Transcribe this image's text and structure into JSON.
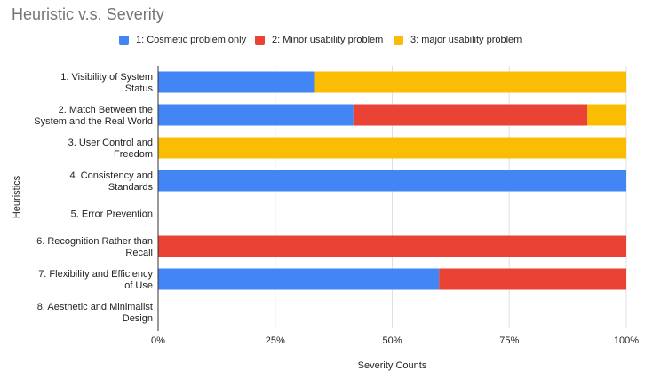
{
  "chart_data": {
    "type": "bar",
    "orientation": "horizontal",
    "stacked": "percent",
    "title": "Heuristic v.s. Severity",
    "xlabel": "Severity Counts",
    "ylabel": "Heuristics",
    "xlim": [
      0,
      100
    ],
    "x_ticks": [
      "0%",
      "25%",
      "50%",
      "75%",
      "100%"
    ],
    "x_tick_values": [
      0,
      25,
      50,
      75,
      100
    ],
    "grid": true,
    "legend_position": "top",
    "categories": [
      [
        "1. Visibility of System",
        "Status"
      ],
      [
        "2. Match Between the",
        "System and the Real World"
      ],
      [
        "3. User Control and",
        "Freedom"
      ],
      [
        "4. Consistency and",
        "Standards"
      ],
      [
        "5. Error Prevention"
      ],
      [
        "6. Recognition Rather than",
        "Recall"
      ],
      [
        "7. Flexibility and Efficiency",
        "of Use"
      ],
      [
        "8. Aesthetic and Minimalist",
        "Design"
      ]
    ],
    "series": [
      {
        "name": "1: Cosmetic problem only",
        "color": "#4285f4",
        "values": [
          33.3,
          41.7,
          0,
          100,
          0,
          0,
          60,
          0
        ]
      },
      {
        "name": "2: Minor usability problem",
        "color": "#ea4335",
        "values": [
          0,
          50,
          0,
          0,
          0,
          100,
          40,
          0
        ]
      },
      {
        "name": "3: major usability problem",
        "color": "#fbbc04",
        "values": [
          66.7,
          8.3,
          100,
          0,
          0,
          0,
          0,
          0
        ]
      }
    ]
  }
}
